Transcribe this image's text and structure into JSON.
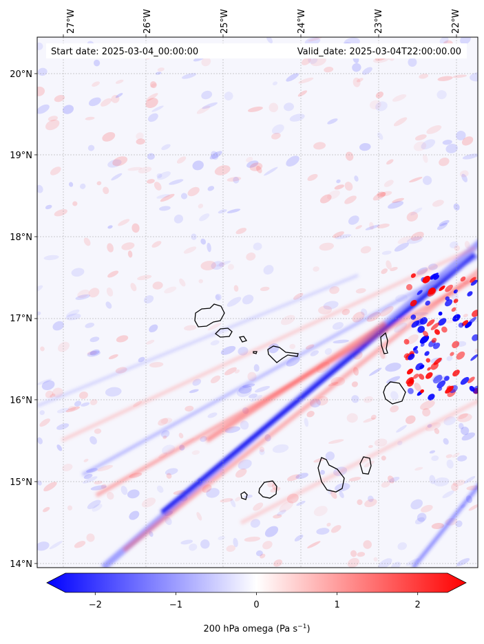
{
  "header": {
    "start_label": "Start date: 2025-03-04_00:00:00",
    "valid_label": "Valid_date: 2025-03-04T22:00:00.00"
  },
  "lon_labels": [
    "27°W",
    "26°W",
    "25°W",
    "24°W",
    "23°W",
    "22°W"
  ],
  "lat_labels": [
    "20°N",
    "19°N",
    "18°N",
    "17°N",
    "16°N",
    "15°N",
    "14°N"
  ],
  "colorbar": {
    "ticks": [
      "−2",
      "−1",
      "0",
      "1",
      "2"
    ],
    "tick_values": [
      -2,
      -1,
      0,
      1,
      2
    ],
    "range": [
      -2.6,
      2.6
    ],
    "label_main": "200 hPa omega (Pa s",
    "label_sup": "−1",
    "label_end": ")",
    "colors": {
      "negative": "#0000ff",
      "zero": "#ffffff",
      "positive": "#ff0000"
    }
  },
  "map": {
    "lon_range": [
      -27.35,
      -21.6
    ],
    "lat_range": [
      13.95,
      20.45
    ],
    "grid": true,
    "coastline_color": "#000000",
    "field_note": ""
  }
}
